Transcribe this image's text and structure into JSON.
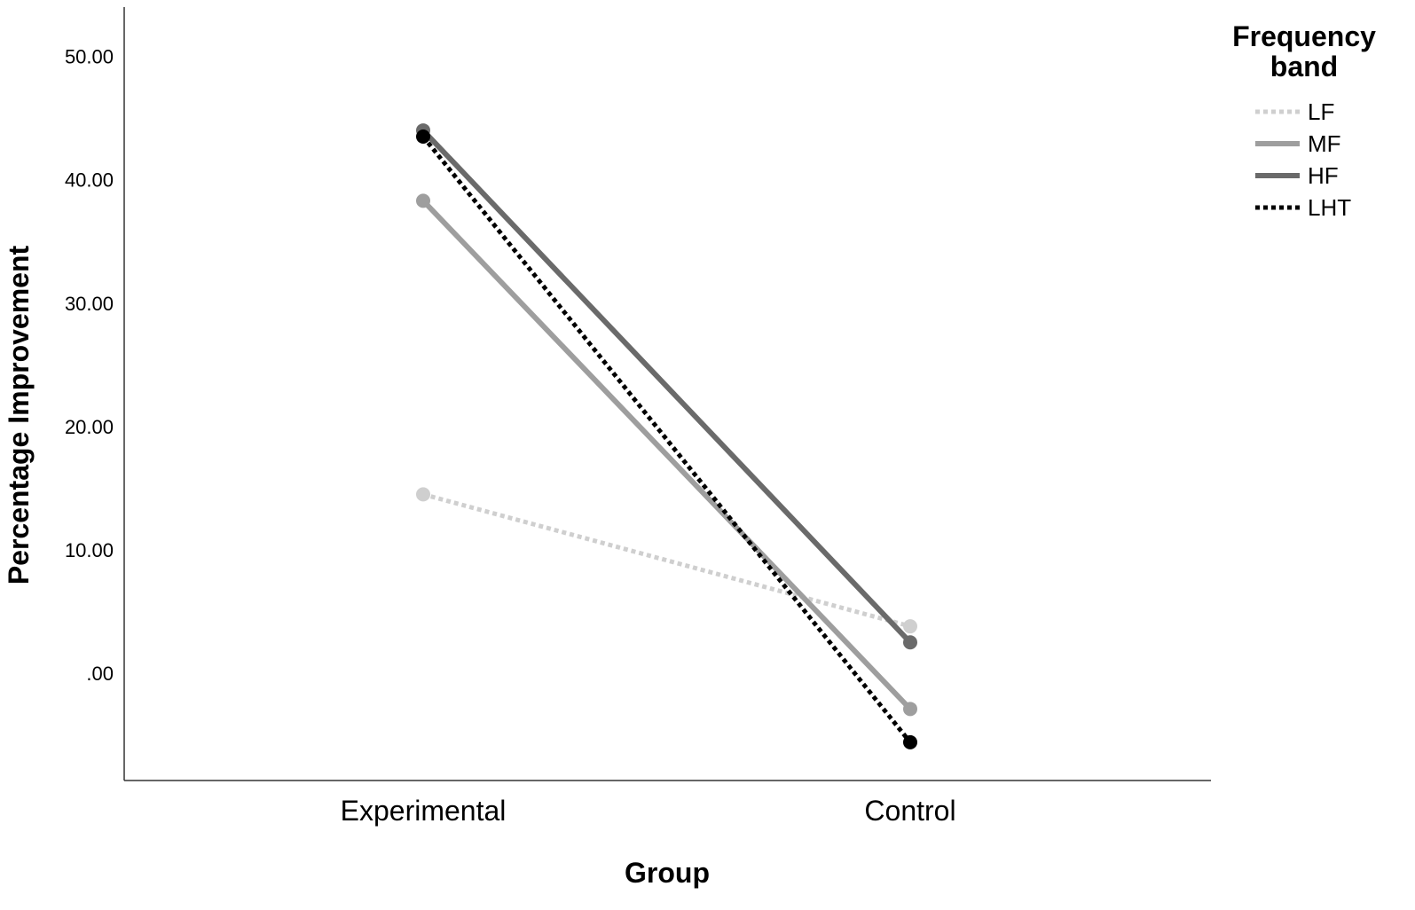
{
  "chart_data": {
    "type": "line",
    "categories": [
      "Experimental",
      "Control"
    ],
    "xlabel": "Group",
    "ylabel": "Percentage Improvement",
    "ylim": [
      -8.7,
      54
    ],
    "yticks": [
      0,
      10,
      20,
      30,
      40,
      50
    ],
    "ytick_labels": [
      ".00",
      "10.00",
      "20.00",
      "30.00",
      "40.00",
      "50.00"
    ],
    "grid": false,
    "legend": {
      "title_lines": [
        "Frequency",
        "band"
      ],
      "placement": "top-right"
    },
    "series": [
      {
        "name": "LF",
        "values": [
          14.5,
          3.8
        ],
        "color": "#cfcfcf",
        "dash": "dotted"
      },
      {
        "name": "MF",
        "values": [
          38.3,
          -2.9
        ],
        "color": "#9e9e9e",
        "dash": "solid"
      },
      {
        "name": "HF",
        "values": [
          44.0,
          2.5
        ],
        "color": "#6a6a6a",
        "dash": "solid"
      },
      {
        "name": "LHT",
        "values": [
          43.5,
          -5.6
        ],
        "color": "#000000",
        "dash": "dotted"
      }
    ]
  }
}
